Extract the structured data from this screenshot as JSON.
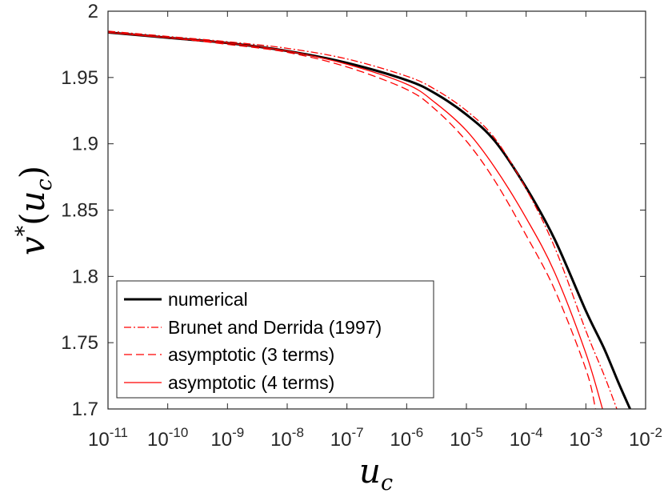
{
  "chart_data": {
    "type": "line",
    "xscale": "log",
    "xlim": [
      1e-11,
      0.01
    ],
    "ylim": [
      1.7,
      2.0
    ],
    "xlabel": {
      "base": "u",
      "subscript": "c"
    },
    "ylabel": {
      "base": "v",
      "sup": "*",
      "arg_base": "u",
      "arg_sub": "c"
    },
    "xticks": [
      {
        "value": 1e-11,
        "base": "10",
        "exp": "-11"
      },
      {
        "value": 1e-10,
        "base": "10",
        "exp": "-10"
      },
      {
        "value": 1e-09,
        "base": "10",
        "exp": "-9"
      },
      {
        "value": 1e-08,
        "base": "10",
        "exp": "-8"
      },
      {
        "value": 1e-07,
        "base": "10",
        "exp": "-7"
      },
      {
        "value": 1e-06,
        "base": "10",
        "exp": "-6"
      },
      {
        "value": 1e-05,
        "base": "10",
        "exp": "-5"
      },
      {
        "value": 0.0001,
        "base": "10",
        "exp": "-4"
      },
      {
        "value": 0.001,
        "base": "10",
        "exp": "-3"
      },
      {
        "value": 0.01,
        "base": "10",
        "exp": "-2"
      }
    ],
    "yticks": [
      {
        "value": 1.7,
        "label": "1.7"
      },
      {
        "value": 1.75,
        "label": "1.75"
      },
      {
        "value": 1.8,
        "label": "1.8"
      },
      {
        "value": 1.85,
        "label": "1.85"
      },
      {
        "value": 1.9,
        "label": "1.9"
      },
      {
        "value": 1.95,
        "label": "1.95"
      },
      {
        "value": 2.0,
        "label": "2"
      }
    ],
    "series": [
      {
        "name": "numerical",
        "color": "#000000",
        "style": "solid",
        "width": 3,
        "x": [
          1e-11,
          1e-10,
          1e-09,
          1e-08,
          1e-07,
          1e-06,
          3e-06,
          1e-05,
          3e-05,
          0.0001,
          0.0003,
          0.001,
          0.002,
          0.0035,
          0.0055
        ],
        "y": [
          1.984,
          1.98,
          1.976,
          1.97,
          1.961,
          1.948,
          1.938,
          1.922,
          1.902,
          1.867,
          1.828,
          1.774,
          1.746,
          1.72,
          1.7
        ]
      },
      {
        "name": "Brunet and Derrida (1997)",
        "color": "#ff0000",
        "style": "dashdot",
        "width": 1.3,
        "x": [
          1e-11,
          1e-10,
          1e-09,
          1e-08,
          1e-07,
          1e-06,
          3e-06,
          1e-05,
          3e-05,
          0.0001,
          0.0003,
          0.001,
          0.002,
          0.0033
        ],
        "y": [
          1.985,
          1.981,
          1.977,
          1.972,
          1.964,
          1.951,
          1.941,
          1.925,
          1.904,
          1.866,
          1.822,
          1.759,
          1.726,
          1.7
        ]
      },
      {
        "name": "asymptotic (3 terms)",
        "color": "#ff0000",
        "style": "dashed",
        "width": 1.3,
        "x": [
          1e-11,
          1e-10,
          1e-09,
          1e-08,
          1e-07,
          1e-06,
          3e-06,
          1e-05,
          3e-05,
          0.0001,
          0.0003,
          0.001,
          0.00145
        ],
        "y": [
          1.984,
          1.98,
          1.975,
          1.969,
          1.958,
          1.941,
          1.926,
          1.902,
          1.872,
          1.831,
          1.79,
          1.73,
          1.7
        ]
      },
      {
        "name": "asymptotic (4 terms)",
        "color": "#ff0000",
        "style": "solid",
        "width": 1.3,
        "x": [
          1e-11,
          1e-10,
          1e-09,
          1e-08,
          1e-07,
          1e-06,
          3e-06,
          1e-05,
          3e-05,
          0.0001,
          0.0003,
          0.001,
          0.0019
        ],
        "y": [
          1.984,
          1.98,
          1.976,
          1.97,
          1.96,
          1.945,
          1.931,
          1.91,
          1.882,
          1.844,
          1.803,
          1.742,
          1.7
        ]
      }
    ],
    "legend": {
      "position": "lower-left",
      "entries": [
        "numerical",
        "Brunet and Derrida (1997)",
        "asymptotic (3 terms)",
        "asymptotic (4 terms)"
      ]
    }
  }
}
